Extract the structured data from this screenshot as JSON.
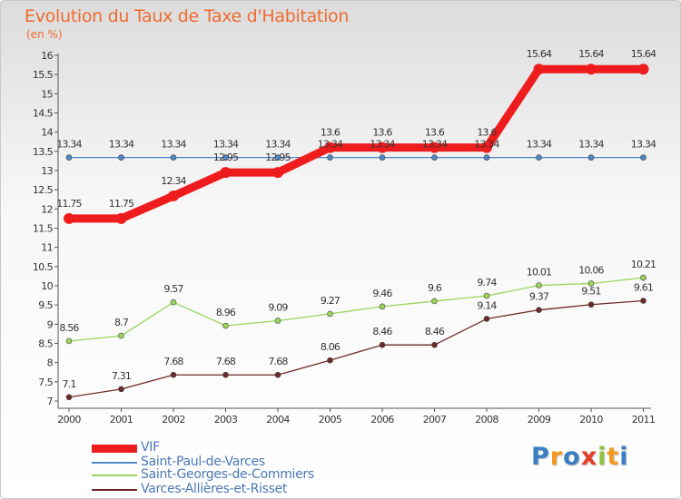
{
  "chart_data": {
    "type": "line",
    "title": "Evolution du Taux de Taxe d'Habitation",
    "unit_label": "(en %)",
    "x": [
      "2000",
      "2001",
      "2002",
      "2003",
      "2004",
      "2005",
      "2006",
      "2007",
      "2008",
      "2009",
      "2010",
      "2011"
    ],
    "ylim": [
      7,
      16
    ],
    "yticks": [
      "7",
      "7.5",
      "8",
      "8.5",
      "9",
      "9.5",
      "10",
      "10.5",
      "11",
      "11.5",
      "12",
      "12.5",
      "13",
      "13.5",
      "14",
      "14.5",
      "15",
      "15.5",
      "16"
    ],
    "grid": false,
    "legend_position": "bottom-left",
    "series": [
      {
        "name": "VIF",
        "color": "#ee1c1c",
        "values": [
          11.75,
          11.75,
          12.34,
          12.95,
          12.95,
          13.6,
          13.6,
          13.6,
          13.6,
          15.64,
          15.64,
          15.64
        ],
        "labels": [
          "11.75",
          "11.75",
          "12.34",
          "12.95",
          "12.95",
          "13.6",
          "13.6",
          "13.6",
          "13.6",
          "15.64",
          "15.64",
          "15.64"
        ]
      },
      {
        "name": "Saint-Paul-de-Varces",
        "color": "#4f87c6",
        "values": [
          13.34,
          13.34,
          13.34,
          13.34,
          13.34,
          13.34,
          13.34,
          13.34,
          13.34,
          13.34,
          13.34,
          13.34
        ],
        "labels": [
          "13.34",
          "13.34",
          "13.34",
          "13.34",
          "13.34",
          "13.34",
          "13.34",
          "13.34",
          "13.34",
          "13.34",
          "13.34",
          "13.34"
        ]
      },
      {
        "name": "Saint-Georges-de-Commiers",
        "color": "#9ad55a",
        "values": [
          8.56,
          8.7,
          9.57,
          8.96,
          9.09,
          9.27,
          9.46,
          9.6,
          9.74,
          10.01,
          10.06,
          10.21
        ],
        "labels": [
          "8.56",
          "8.7",
          "9.57",
          "8.96",
          "9.09",
          "9.27",
          "9.46",
          "9.6",
          "9.74",
          "10.01",
          "10.06",
          "10.21"
        ]
      },
      {
        "name": "Varces-Allières-et-Risset",
        "color": "#6e2a2a",
        "values": [
          7.1,
          7.31,
          7.68,
          7.68,
          7.68,
          8.06,
          8.46,
          8.46,
          9.14,
          9.37,
          9.51,
          9.61
        ],
        "labels": [
          "7.1",
          "7.31",
          "7.68",
          "7.68",
          "7.68",
          "8.06",
          "8.46",
          "8.46",
          "9.14",
          "9.37",
          "9.51",
          "9.61"
        ]
      }
    ]
  },
  "logo": {
    "text": "Proxiti",
    "letters": [
      "P",
      "r",
      "o",
      "x",
      "i",
      "t",
      "i"
    ],
    "colors": [
      "#3a7fc4",
      "#f29a1f",
      "#3a7fc4",
      "#e63d2a",
      "#8cc63f",
      "#f29a1f",
      "#3a7fc4"
    ]
  }
}
